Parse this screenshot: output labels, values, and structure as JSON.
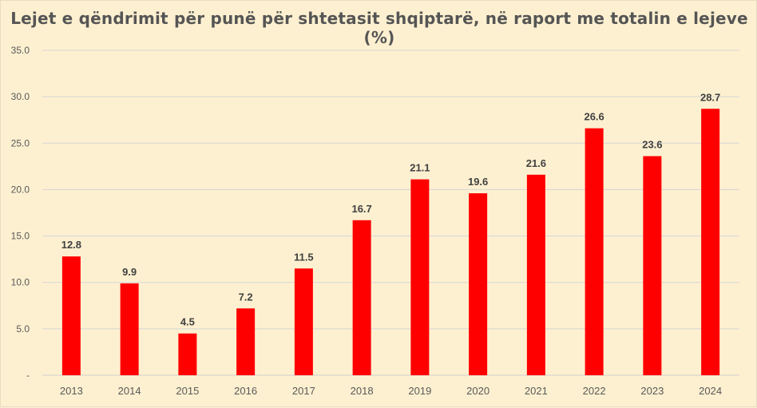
{
  "chart_data": {
    "type": "bar",
    "title": "Lejet e qëndrimit për punë për shtetasit shqiptarë, në raport me totalin e lejeve (%)",
    "xlabel": "",
    "ylabel": "",
    "categories": [
      "2013",
      "2014",
      "2015",
      "2016",
      "2017",
      "2018",
      "2019",
      "2020",
      "2021",
      "2022",
      "2023",
      "2024"
    ],
    "values": [
      12.8,
      9.9,
      4.5,
      7.2,
      11.5,
      16.7,
      21.1,
      19.6,
      21.6,
      26.6,
      23.6,
      28.7
    ],
    "value_labels": [
      "12.8",
      "9.9",
      "4.5",
      "7.2",
      "11.5",
      "16.7",
      "21.1",
      "19.6",
      "21.6",
      "26.6",
      "23.6",
      "28.7"
    ],
    "ylim": [
      0,
      35
    ],
    "yticks": [
      {
        "value": 0,
        "label": "-"
      },
      {
        "value": 5,
        "label": "5.0"
      },
      {
        "value": 10,
        "label": "10.0"
      },
      {
        "value": 15,
        "label": "15.0"
      },
      {
        "value": 20,
        "label": "20.0"
      },
      {
        "value": 25,
        "label": "25.0"
      },
      {
        "value": 30,
        "label": "30.0"
      },
      {
        "value": 35,
        "label": "35.0"
      }
    ],
    "grid": true,
    "legend": "none",
    "bar_color": "#ff0000",
    "background_color": "#fdf0d0"
  }
}
